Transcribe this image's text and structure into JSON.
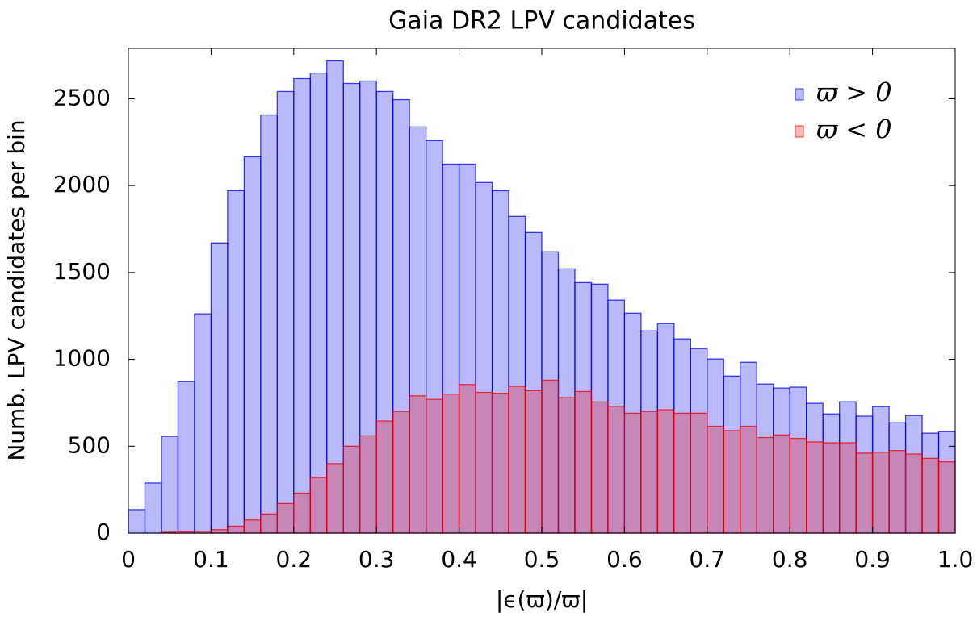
{
  "chart_data": {
    "type": "histogram",
    "title": "Gaia DR2 LPV candidates",
    "x_label": "|ϵ(ϖ)/ϖ|",
    "y_label": "Numb. LPV candidates per bin",
    "bins": [
      0,
      0.02,
      0.04,
      0.06,
      0.08,
      0.1,
      0.12,
      0.14,
      0.16,
      0.18,
      0.2,
      0.22,
      0.24,
      0.26,
      0.28,
      0.3,
      0.32,
      0.34,
      0.36,
      0.38,
      0.4,
      0.42,
      0.44,
      0.46,
      0.48,
      0.5,
      0.52,
      0.54,
      0.56,
      0.58,
      0.6,
      0.62,
      0.64,
      0.66,
      0.68,
      0.7,
      0.72,
      0.74,
      0.76,
      0.78,
      0.8,
      0.82,
      0.84,
      0.86,
      0.88,
      0.9,
      0.92,
      0.94,
      0.96,
      0.98,
      1
    ],
    "series": [
      {
        "name": "ϖ > 0",
        "color": "#0000ee",
        "values": [
          135,
          288,
          557,
          872,
          1262,
          1670,
          1971,
          2166,
          2407,
          2542,
          2616,
          2648,
          2718,
          2588,
          2602,
          2542,
          2495,
          2338,
          2259,
          2124,
          2124,
          2018,
          1971,
          1823,
          1730,
          1619,
          1521,
          1442,
          1433,
          1341,
          1266,
          1164,
          1206,
          1118,
          1062,
          1002,
          904,
          983,
          858,
          835,
          840,
          747,
          686,
          756,
          673,
          728,
          635,
          677,
          575,
          584
        ]
      },
      {
        "name": "ϖ < 0",
        "color": "#ee0000",
        "values": [
          0,
          0,
          5,
          8,
          10,
          20,
          40,
          75,
          110,
          170,
          230,
          320,
          400,
          500,
          560,
          645,
          700,
          790,
          770,
          800,
          855,
          810,
          805,
          845,
          820,
          880,
          780,
          815,
          755,
          730,
          690,
          700,
          710,
          690,
          690,
          615,
          590,
          615,
          550,
          565,
          545,
          525,
          520,
          520,
          460,
          465,
          475,
          455,
          430,
          410
        ]
      }
    ],
    "xlim": [
      0,
      1
    ],
    "xticks": [
      0,
      0.1,
      0.2,
      0.3,
      0.4,
      0.5,
      0.6,
      0.7,
      0.8,
      0.9,
      {
        "value": 1,
        "label": "1.0"
      }
    ],
    "ylim": [
      0,
      2790
    ],
    "yticks": [
      0,
      500,
      1000,
      1500,
      2000,
      2500
    ],
    "legend": "upper right"
  }
}
